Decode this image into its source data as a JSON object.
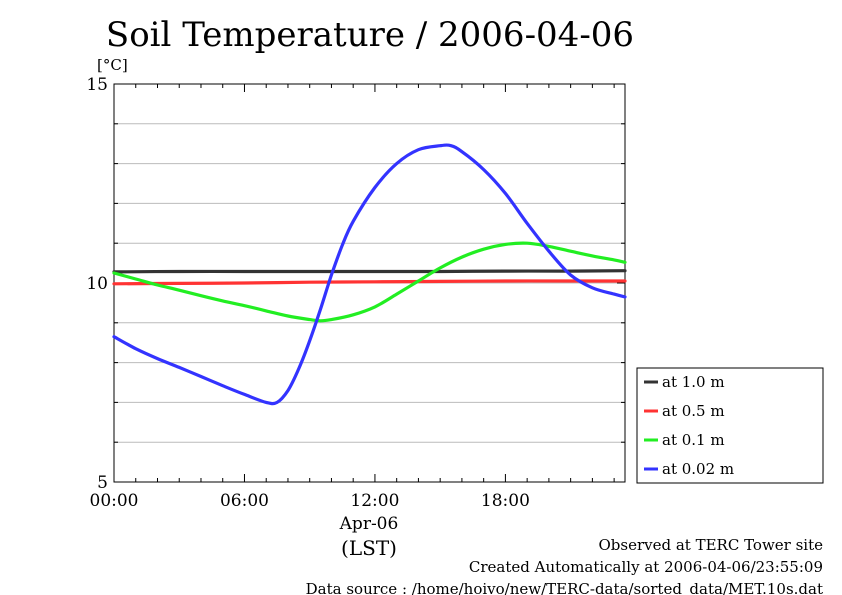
{
  "chart_data": {
    "type": "line",
    "title": "Soil Temperature / 2006-04-06",
    "ylabel": "[°C]",
    "xlabel": "(LST)",
    "date_label": "Apr-06",
    "xlim": [
      0,
      23.5
    ],
    "ylim": [
      5,
      15
    ],
    "x_ticks": [
      {
        "x": 0,
        "label": "00:00"
      },
      {
        "x": 6,
        "label": "06:00"
      },
      {
        "x": 12,
        "label": "12:00"
      },
      {
        "x": 18,
        "label": "18:00"
      }
    ],
    "y_ticks": [
      {
        "y": 5,
        "label": "5"
      },
      {
        "y": 10,
        "label": "10"
      },
      {
        "y": 15,
        "label": "15"
      }
    ],
    "grid": true,
    "legend_position": "right",
    "series": [
      {
        "name": "at 1.0 m",
        "color": "#333333",
        "x": [
          0,
          3,
          6,
          9,
          12,
          15,
          18,
          21,
          23.5
        ],
        "y": [
          10.28,
          10.29,
          10.29,
          10.29,
          10.29,
          10.29,
          10.3,
          10.3,
          10.31
        ]
      },
      {
        "name": "at 0.5 m",
        "color": "#ff3333",
        "x": [
          0,
          3,
          6,
          9,
          12,
          15,
          18,
          21,
          23.5
        ],
        "y": [
          9.98,
          9.99,
          10.0,
          10.02,
          10.03,
          10.04,
          10.05,
          10.05,
          10.05
        ]
      },
      {
        "name": "at 0.1 m",
        "color": "#22ee22",
        "x": [
          0,
          1,
          2,
          3,
          4,
          5,
          6,
          7,
          8,
          9,
          9.5,
          10,
          11,
          12,
          13,
          14,
          15,
          16,
          17,
          18,
          19,
          20,
          21,
          22,
          23,
          23.5
        ],
        "y": [
          10.25,
          10.1,
          9.95,
          9.82,
          9.68,
          9.55,
          9.43,
          9.3,
          9.17,
          9.08,
          9.05,
          9.08,
          9.2,
          9.4,
          9.72,
          10.05,
          10.38,
          10.65,
          10.85,
          10.97,
          11.0,
          10.92,
          10.8,
          10.68,
          10.58,
          10.52
        ]
      },
      {
        "name": "at 0.02 m",
        "color": "#3333ff",
        "x": [
          0,
          1,
          2,
          3,
          4,
          5,
          6,
          7,
          7.5,
          8,
          8.5,
          9,
          9.5,
          10,
          10.5,
          11,
          12,
          13,
          14,
          15,
          15.5,
          16,
          17,
          18,
          19,
          20,
          21,
          22,
          23,
          23.5
        ],
        "y": [
          8.65,
          8.35,
          8.1,
          7.88,
          7.65,
          7.42,
          7.2,
          7.0,
          7.0,
          7.3,
          7.85,
          8.55,
          9.35,
          10.2,
          10.95,
          11.55,
          12.4,
          13.0,
          13.35,
          13.45,
          13.45,
          13.3,
          12.85,
          12.25,
          11.5,
          10.8,
          10.2,
          9.88,
          9.72,
          9.65
        ]
      }
    ]
  },
  "footer": {
    "line1": "Observed at TERC Tower site",
    "line2": "Created Automatically at 2006-04-06/23:55:09",
    "line3": "Data source : /home/hoivo/new/TERC-data/sorted_data/MET.10s.dat"
  }
}
